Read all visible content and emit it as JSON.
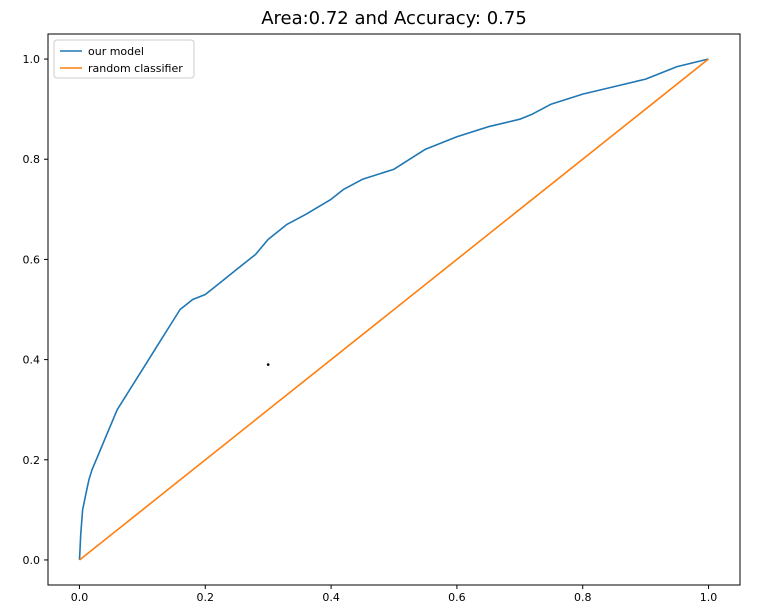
{
  "chart_data": {
    "type": "line",
    "title": "Area:0.72 and Accuracy: 0.75",
    "xlabel": "",
    "ylabel": "",
    "xlim": [
      -0.05,
      1.05
    ],
    "ylim": [
      -0.05,
      1.05
    ],
    "xticks": [
      0.0,
      0.2,
      0.4,
      0.6,
      0.8,
      1.0
    ],
    "xtick_labels": [
      "0.0",
      "0.2",
      "0.4",
      "0.6",
      "0.8",
      "1.0"
    ],
    "yticks": [
      0.0,
      0.2,
      0.4,
      0.6,
      0.8,
      1.0
    ],
    "ytick_labels": [
      "0.0",
      "0.2",
      "0.4",
      "0.6",
      "0.8",
      "1.0"
    ],
    "grid": false,
    "legend_position": "top-left",
    "series": [
      {
        "name": "our model",
        "color": "#1f77b4",
        "x": [
          0.0,
          0.002,
          0.005,
          0.01,
          0.015,
          0.02,
          0.03,
          0.04,
          0.05,
          0.06,
          0.07,
          0.08,
          0.09,
          0.1,
          0.11,
          0.12,
          0.13,
          0.14,
          0.15,
          0.16,
          0.17,
          0.18,
          0.19,
          0.2,
          0.22,
          0.25,
          0.28,
          0.3,
          0.33,
          0.36,
          0.4,
          0.42,
          0.45,
          0.5,
          0.55,
          0.6,
          0.65,
          0.7,
          0.72,
          0.75,
          0.8,
          0.85,
          0.9,
          0.95,
          1.0
        ],
        "y": [
          0.0,
          0.05,
          0.1,
          0.13,
          0.16,
          0.18,
          0.21,
          0.24,
          0.27,
          0.3,
          0.32,
          0.34,
          0.36,
          0.38,
          0.4,
          0.42,
          0.44,
          0.46,
          0.48,
          0.5,
          0.51,
          0.52,
          0.525,
          0.53,
          0.55,
          0.58,
          0.61,
          0.64,
          0.67,
          0.69,
          0.72,
          0.74,
          0.76,
          0.78,
          0.82,
          0.845,
          0.865,
          0.88,
          0.89,
          0.91,
          0.93,
          0.945,
          0.96,
          0.985,
          1.0
        ]
      },
      {
        "name": "random classifier",
        "color": "#ff7f0e",
        "x": [
          0.0,
          1.0
        ],
        "y": [
          0.0,
          1.0
        ]
      }
    ],
    "annotations": [
      {
        "type": "point",
        "x": 0.3,
        "y": 0.39,
        "color": "#000000"
      }
    ]
  }
}
